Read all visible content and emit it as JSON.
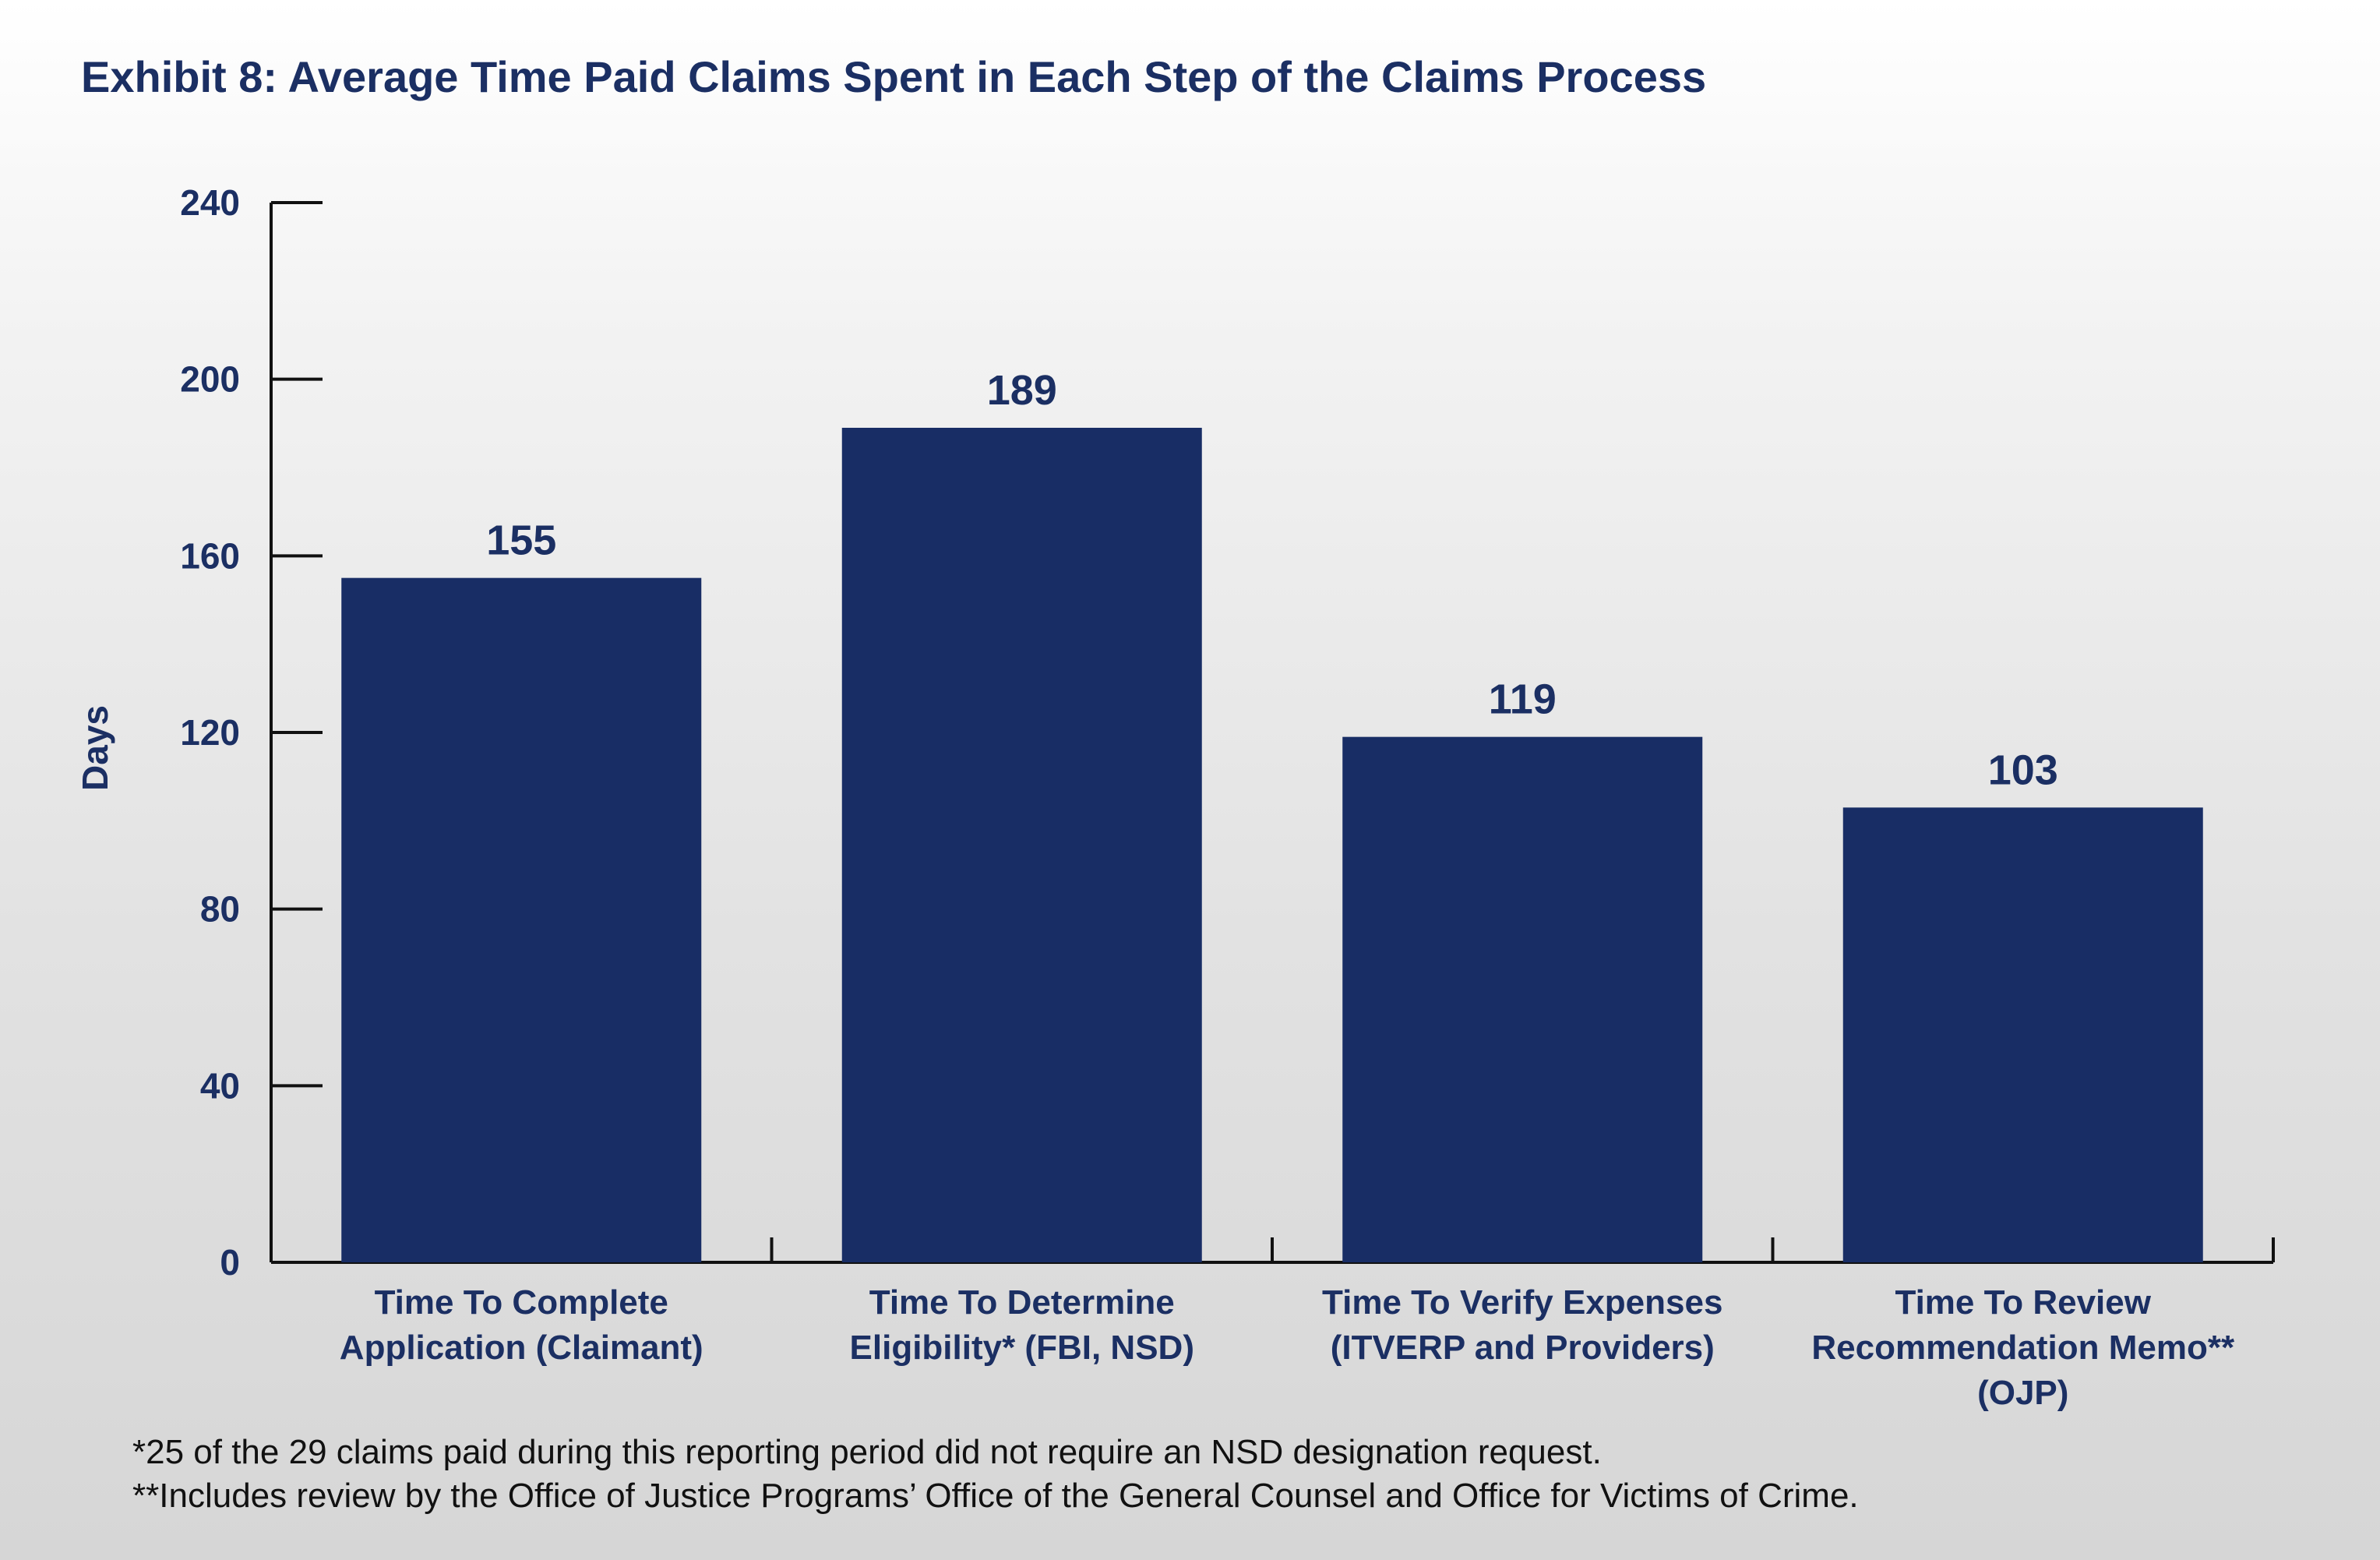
{
  "colors": {
    "title": "#1b2f63",
    "bar": "#182d65",
    "text": "#1b2f63",
    "axis": "#111111",
    "footnote": "#111111"
  },
  "chart_data": {
    "type": "bar",
    "title": "Exhibit 8: Average Time Paid Claims Spent in Each Step of the Claims Process",
    "xlabel": "",
    "ylabel": "Days",
    "ylim": [
      0,
      240
    ],
    "yticks": [
      0,
      40,
      80,
      120,
      160,
      200,
      240
    ],
    "grid": false,
    "legend": "none",
    "categories": [
      [
        "Time To Complete",
        "Application (Claimant)"
      ],
      [
        "Time To Determine",
        "Eligibility* (FBI, NSD)"
      ],
      [
        "Time To Verify Expenses",
        "(ITVERP and Providers)"
      ],
      [
        "Time To Review",
        "Recommendation Memo**",
        "(OJP)"
      ]
    ],
    "values": [
      155,
      189,
      119,
      103
    ],
    "data_labels": [
      "155",
      "189",
      "119",
      "103"
    ]
  },
  "footnotes": [
    "*25 of the 29 claims paid during this reporting period did not require an NSD designation request.",
    "**Includes review by the Office of Justice Programs’ Office of the General Counsel and Office for Victims of Crime."
  ]
}
